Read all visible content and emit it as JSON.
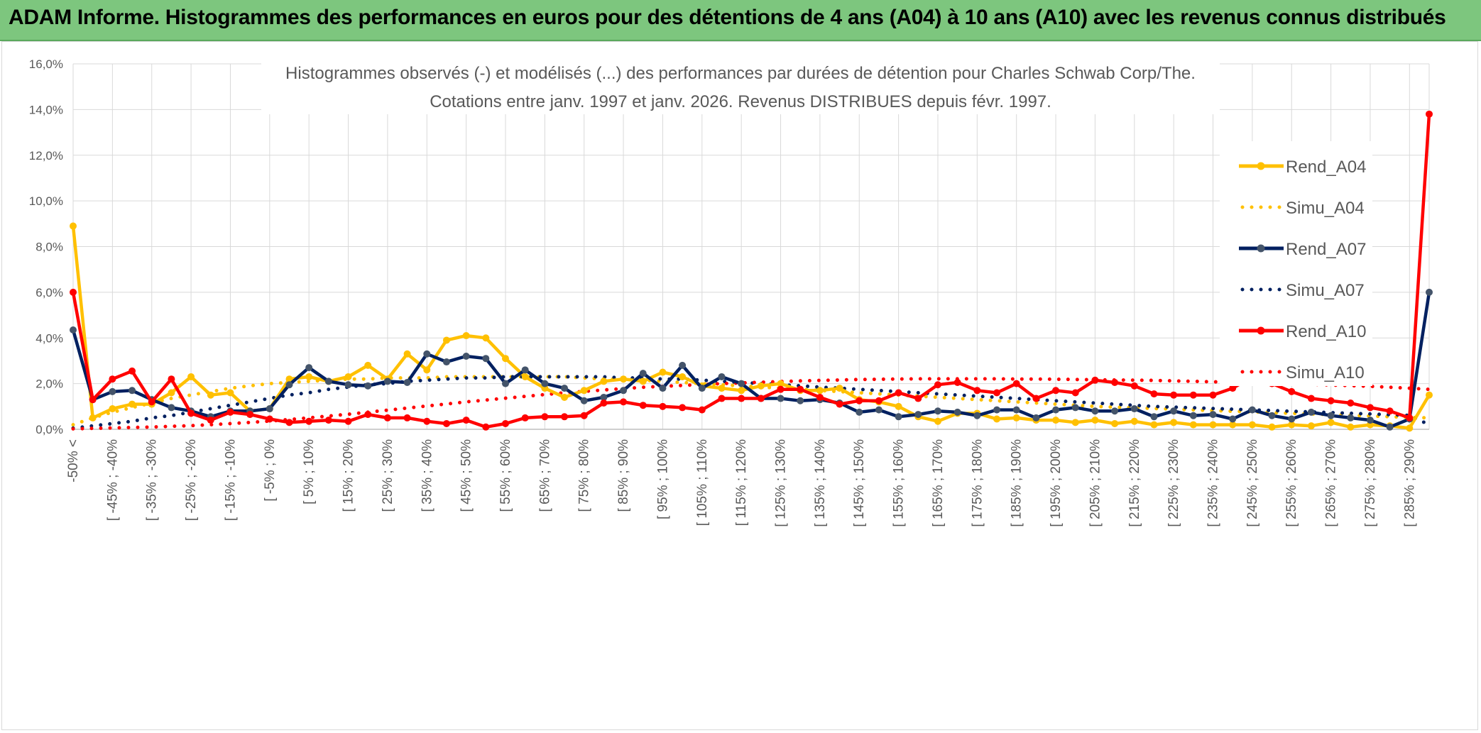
{
  "banner": {
    "title": "ADAM Informe. Histogrammes des performances en euros pour des détentions de 4 ans (A04) à 10 ans (A10) avec les revenus connus distribués"
  },
  "chart_data": {
    "type": "line",
    "title_lines": [
      "Histogrammes observés (-) et modélisés (...) des performances par durées de détention pour Charles Schwab Corp/The.",
      "Cotations entre janv. 1997 et janv. 2026. Revenus DISTRIBUES depuis févr. 1997."
    ],
    "xlabel": "",
    "ylabel": "",
    "ylim": [
      0,
      16
    ],
    "y_ticks": [
      "0,0%",
      "2,0%",
      "4,0%",
      "6,0%",
      "8,0%",
      "10,0%",
      "12,0%",
      "14,0%",
      "16,0%"
    ],
    "x_tick_labels": [
      "-50% <",
      "[ -45% ; -40%",
      "[ -35% ; -30%",
      "[ -25% ; -20%",
      "[ -15% ; -10%",
      "[ -5% ; 0%",
      "[ 5% ; 10%",
      "[ 15% ; 20%",
      "[ 25% ; 30%",
      "[ 35% ; 40%",
      "[ 45% ; 50%",
      "[ 55% ; 60%",
      "[ 65% ; 70%",
      "[ 75% ; 80%",
      "[ 85% ; 90%",
      "[ 95% ; 100%",
      "[ 105% ; 110%",
      "[ 115% ; 120%",
      "[ 125% ; 130%",
      "[ 135% ; 140%",
      "[ 145% ; 150%",
      "[ 155% ; 160%",
      "[ 165% ; 170%",
      "[ 175% ; 180%",
      "[ 185% ; 190%",
      "[ 195% ; 200%",
      "[ 205% ; 210%",
      "[ 215% ; 220%",
      "[ 225% ; 230%",
      "[ 235% ; 240%",
      "[ 245% ; 250%",
      "[ 255% ; 260%",
      "[ 265% ; 270%",
      "[ 275% ; 280%",
      "[ 285% ; 290%"
    ],
    "num_categories": 70,
    "grid": true,
    "legend_position": "right",
    "series": [
      {
        "name": "Rend_A04",
        "style": "solid",
        "color": "#ffc000",
        "values": [
          8.9,
          0.5,
          0.9,
          1.1,
          1.1,
          1.6,
          2.3,
          1.5,
          1.6,
          0.8,
          0.9,
          2.2,
          2.3,
          2.1,
          2.3,
          2.8,
          2.2,
          3.3,
          2.6,
          3.9,
          4.1,
          4.0,
          3.1,
          2.3,
          1.8,
          1.4,
          1.7,
          2.1,
          2.2,
          2.1,
          2.5,
          2.3,
          1.9,
          1.8,
          1.7,
          1.9,
          2.0,
          1.7,
          1.7,
          1.8,
          1.3,
          1.2,
          1.0,
          0.55,
          0.35,
          0.7,
          0.7,
          0.45,
          0.5,
          0.4,
          0.4,
          0.3,
          0.4,
          0.25,
          0.35,
          0.2,
          0.3,
          0.2,
          0.2,
          0.2,
          0.2,
          0.1,
          0.2,
          0.15,
          0.3,
          0.1,
          0.2,
          0.15,
          0.05,
          1.5
        ]
      },
      {
        "name": "Simu_A04",
        "style": "dotted",
        "color": "#ffc000",
        "values": [
          0.2,
          0.5,
          0.75,
          0.95,
          1.15,
          1.35,
          1.5,
          1.65,
          1.8,
          1.9,
          2.0,
          2.05,
          2.1,
          2.15,
          2.2,
          2.2,
          2.25,
          2.25,
          2.25,
          2.3,
          2.3,
          2.3,
          2.3,
          2.3,
          2.3,
          2.3,
          2.25,
          2.2,
          2.2,
          2.15,
          2.1,
          2.05,
          2.0,
          1.95,
          1.9,
          1.85,
          1.8,
          1.75,
          1.7,
          1.65,
          1.6,
          1.55,
          1.5,
          1.45,
          1.4,
          1.35,
          1.3,
          1.25,
          1.2,
          1.15,
          1.1,
          1.05,
          1.0,
          0.97,
          0.94,
          0.91,
          0.88,
          0.85,
          0.82,
          0.79,
          0.76,
          0.73,
          0.7,
          0.67,
          0.64,
          0.61,
          0.58,
          0.55,
          0.52,
          0.5
        ]
      },
      {
        "name": "Rend_A07",
        "style": "solid",
        "color": "#002060",
        "marker": "#44546a",
        "values": [
          4.35,
          1.3,
          1.65,
          1.7,
          1.3,
          0.95,
          0.8,
          0.55,
          0.8,
          0.8,
          0.9,
          1.95,
          2.7,
          2.1,
          1.95,
          1.9,
          2.1,
          2.05,
          3.3,
          2.95,
          3.2,
          3.1,
          2.0,
          2.6,
          2.0,
          1.8,
          1.25,
          1.4,
          1.7,
          2.45,
          1.8,
          2.8,
          1.8,
          2.3,
          2.0,
          1.35,
          1.35,
          1.25,
          1.3,
          1.15,
          0.75,
          0.85,
          0.55,
          0.65,
          0.8,
          0.75,
          0.6,
          0.85,
          0.85,
          0.5,
          0.85,
          0.95,
          0.8,
          0.8,
          0.9,
          0.55,
          0.8,
          0.6,
          0.65,
          0.45,
          0.85,
          0.6,
          0.45,
          0.75,
          0.6,
          0.5,
          0.4,
          0.1,
          0.45,
          6.0
        ]
      },
      {
        "name": "Simu_A07",
        "style": "dotted",
        "color": "#002060",
        "values": [
          0.05,
          0.15,
          0.25,
          0.35,
          0.5,
          0.6,
          0.75,
          0.9,
          1.05,
          1.2,
          1.35,
          1.5,
          1.6,
          1.75,
          1.85,
          1.95,
          2.0,
          2.1,
          2.15,
          2.2,
          2.25,
          2.25,
          2.3,
          2.3,
          2.3,
          2.3,
          2.3,
          2.3,
          2.25,
          2.25,
          2.2,
          2.2,
          2.15,
          2.1,
          2.05,
          2.0,
          1.95,
          1.9,
          1.85,
          1.8,
          1.75,
          1.7,
          1.65,
          1.6,
          1.55,
          1.5,
          1.45,
          1.4,
          1.35,
          1.3,
          1.25,
          1.2,
          1.15,
          1.1,
          1.05,
          1.0,
          0.97,
          0.94,
          0.91,
          0.88,
          0.85,
          0.82,
          0.79,
          0.76,
          0.73,
          0.7,
          0.67,
          0.64,
          0.61,
          0.2
        ]
      },
      {
        "name": "Rend_A10",
        "style": "solid",
        "color": "#ff0000",
        "values": [
          6.0,
          1.3,
          2.2,
          2.55,
          1.2,
          2.2,
          0.7,
          0.4,
          0.75,
          0.65,
          0.45,
          0.3,
          0.35,
          0.4,
          0.35,
          0.65,
          0.5,
          0.5,
          0.35,
          0.25,
          0.4,
          0.1,
          0.25,
          0.5,
          0.55,
          0.55,
          0.6,
          1.15,
          1.2,
          1.05,
          1.0,
          0.95,
          0.85,
          1.35,
          1.35,
          1.35,
          1.75,
          1.75,
          1.4,
          1.1,
          1.25,
          1.25,
          1.6,
          1.35,
          1.95,
          2.05,
          1.7,
          1.6,
          2.0,
          1.35,
          1.7,
          1.6,
          2.15,
          2.05,
          1.9,
          1.55,
          1.5,
          1.5,
          1.5,
          1.8,
          2.3,
          2.0,
          1.65,
          1.35,
          1.25,
          1.15,
          0.95,
          0.8,
          0.5,
          13.8
        ]
      },
      {
        "name": "Simu_A10",
        "style": "dotted",
        "color": "#ff0000",
        "values": [
          0.02,
          0.04,
          0.06,
          0.08,
          0.1,
          0.13,
          0.16,
          0.2,
          0.25,
          0.3,
          0.36,
          0.43,
          0.5,
          0.58,
          0.66,
          0.75,
          0.84,
          0.93,
          1.02,
          1.11,
          1.2,
          1.28,
          1.36,
          1.44,
          1.52,
          1.6,
          1.66,
          1.72,
          1.78,
          1.84,
          1.88,
          1.92,
          1.96,
          2.0,
          2.03,
          2.06,
          2.09,
          2.12,
          2.14,
          2.16,
          2.18,
          2.19,
          2.2,
          2.21,
          2.21,
          2.21,
          2.21,
          2.21,
          2.2,
          2.2,
          2.19,
          2.18,
          2.17,
          2.16,
          2.15,
          2.14,
          2.12,
          2.1,
          2.08,
          2.06,
          2.04,
          2.02,
          2.0,
          1.97,
          1.94,
          1.91,
          1.88,
          1.84,
          1.8,
          1.75
        ]
      }
    ]
  }
}
